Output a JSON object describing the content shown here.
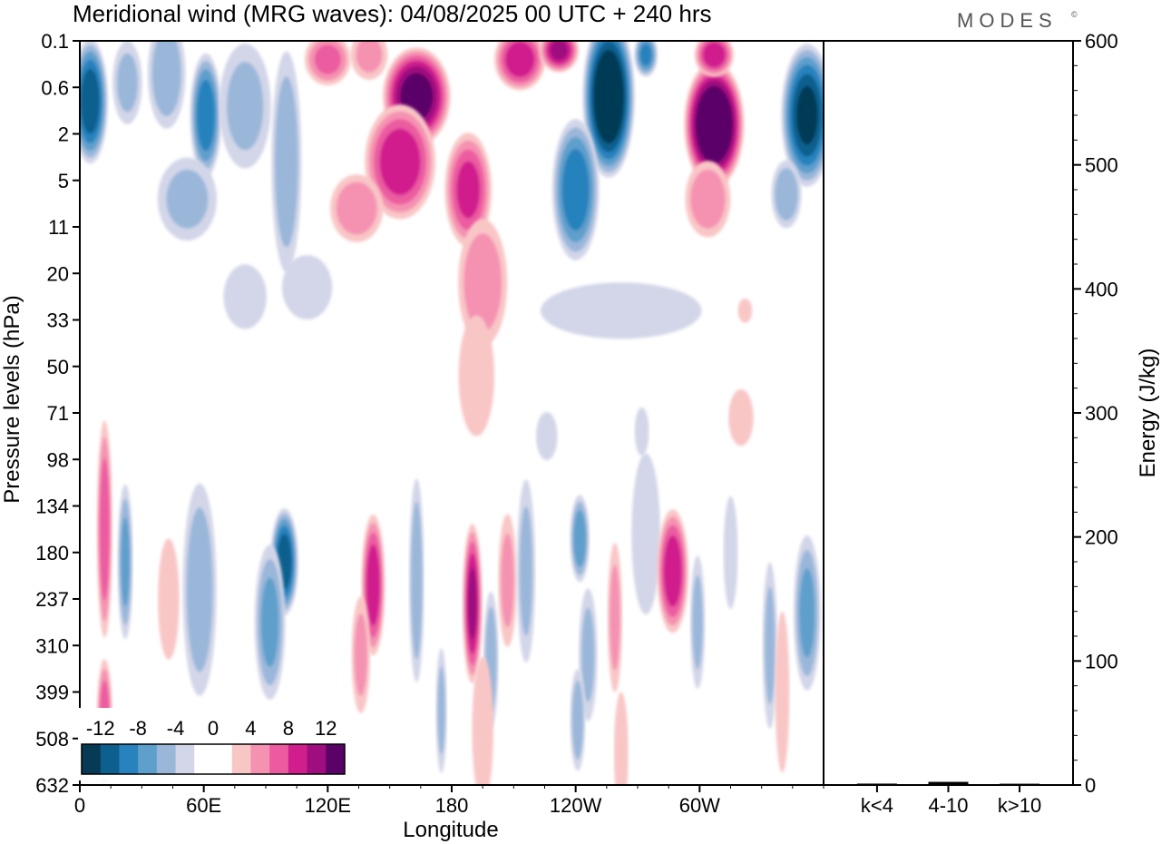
{
  "chart_data": {
    "type": "heatmap",
    "title": "Meridional wind (MRG waves):  04/08/2025  00 UTC  + 240 hrs",
    "brand": "MODES",
    "brand_mark": "©",
    "xlabel": "Longitude",
    "ylabel": "Pressure levels (hPa)",
    "y2label": "Energy (J/kg)",
    "x_ticks": [
      "0",
      "60E",
      "120E",
      "180",
      "120W",
      "60W"
    ],
    "x_tick_degrees": [
      0,
      60,
      120,
      180,
      240,
      300
    ],
    "x_range_degrees": [
      0,
      360
    ],
    "pressure_levels": [
      "0.1",
      "0.6",
      "2",
      "5",
      "11",
      "20",
      "33",
      "50",
      "71",
      "98",
      "134",
      "180",
      "237",
      "310",
      "399",
      "508",
      "632"
    ],
    "colorbar": {
      "tick_labels": [
        "-12",
        "-8",
        "-4",
        "0",
        "4",
        "8",
        "12"
      ],
      "levels": [
        -14,
        -12,
        -10,
        -8,
        -6,
        -4,
        -2,
        0,
        2,
        4,
        6,
        8,
        10,
        12,
        14
      ],
      "colors": [
        "#063a55",
        "#0d5f8e",
        "#2782bd",
        "#5f9fcc",
        "#9ab7da",
        "#d3d6e8",
        "#ffffff",
        "#ffffff",
        "#f9c6c6",
        "#f592b2",
        "#ec5ba0",
        "#d01f8d",
        "#9e0e7f",
        "#5a0268"
      ]
    },
    "energy_panel": {
      "y_ticks": [
        "0",
        "100",
        "200",
        "300",
        "400",
        "500",
        "600"
      ],
      "y_range": [
        0,
        600
      ],
      "categories": [
        "k<4",
        "4-10",
        "k>10"
      ],
      "values": [
        0.4,
        1.8,
        0.3
      ]
    },
    "wind_blobs": [
      {
        "lon": 5,
        "lev": 1.3,
        "wlon": 9,
        "wlev": 1.4,
        "v": -11
      },
      {
        "lon": 23,
        "lev": 0.9,
        "wlon": 8,
        "wlev": 1.0,
        "v": -4
      },
      {
        "lon": 42,
        "lev": 0.7,
        "wlon": 10,
        "wlev": 1.3,
        "v": -5
      },
      {
        "lon": 61,
        "lev": 1.6,
        "wlon": 8,
        "wlev": 1.4,
        "v": -9
      },
      {
        "lon": 80,
        "lev": 1.4,
        "wlon": 14,
        "wlev": 1.5,
        "v": -4
      },
      {
        "lon": 52,
        "lev": 3.4,
        "wlon": 16,
        "wlev": 1.0,
        "v": -4
      },
      {
        "lon": 100,
        "lev": 2.6,
        "wlon": 8,
        "wlev": 2.6,
        "v": -5
      },
      {
        "lon": 110,
        "lev": 5.3,
        "wlon": 14,
        "wlev": 0.8,
        "v": -3
      },
      {
        "lon": 120,
        "lev": 0.4,
        "wlon": 12,
        "wlev": 0.6,
        "v": 6
      },
      {
        "lon": 140,
        "lev": 0.3,
        "wlon": 10,
        "wlev": 0.6,
        "v": 4
      },
      {
        "lon": 163,
        "lev": 1.2,
        "wlon": 17,
        "wlev": 1.1,
        "v": 13
      },
      {
        "lon": 155,
        "lev": 2.6,
        "wlon": 18,
        "wlev": 1.3,
        "v": 9
      },
      {
        "lon": 134,
        "lev": 3.6,
        "wlon": 14,
        "wlev": 0.8,
        "v": 5
      },
      {
        "lon": 188,
        "lev": 3.2,
        "wlon": 12,
        "wlev": 1.3,
        "v": 8
      },
      {
        "lon": 195,
        "lev": 5.2,
        "wlon": 13,
        "wlev": 1.5,
        "v": 5
      },
      {
        "lon": 192,
        "lev": 7.2,
        "wlon": 10,
        "wlev": 1.5,
        "v": 3
      },
      {
        "lon": 213,
        "lev": 0.4,
        "wlon": 13,
        "wlev": 0.7,
        "v": 9
      },
      {
        "lon": 232,
        "lev": 0.2,
        "wlon": 10,
        "wlev": 0.5,
        "v": 10
      },
      {
        "lon": 256,
        "lev": 1.2,
        "wlon": 13,
        "wlev": 1.8,
        "v": -15
      },
      {
        "lon": 240,
        "lev": 3.2,
        "wlon": 12,
        "wlev": 1.6,
        "v": -9
      },
      {
        "lon": 274,
        "lev": 0.3,
        "wlon": 6,
        "wlev": 0.5,
        "v": -8
      },
      {
        "lon": 307,
        "lev": 1.8,
        "wlon": 15,
        "wlev": 1.4,
        "v": 16
      },
      {
        "lon": 307,
        "lev": 0.3,
        "wlon": 10,
        "wlev": 0.5,
        "v": 9
      },
      {
        "lon": 304,
        "lev": 3.4,
        "wlon": 12,
        "wlev": 0.9,
        "v": 5
      },
      {
        "lon": 352,
        "lev": 1.6,
        "wlon": 13,
        "wlev": 1.6,
        "v": -12
      },
      {
        "lon": 342,
        "lev": 3.3,
        "wlon": 8,
        "wlev": 0.8,
        "v": -5
      },
      {
        "lon": 262,
        "lev": 5.8,
        "wlon": 45,
        "wlev": 0.7,
        "v": -3
      },
      {
        "lon": 80,
        "lev": 5.5,
        "wlon": 12,
        "wlev": 0.8,
        "v": -3
      },
      {
        "lon": 322,
        "lev": 5.8,
        "wlon": 4,
        "wlev": 0.3,
        "v": 3
      },
      {
        "lon": 12,
        "lev": 10.5,
        "wlon": 4,
        "wlev": 2.5,
        "v": 7
      },
      {
        "lon": 22,
        "lev": 11.2,
        "wlon": 4,
        "wlev": 1.8,
        "v": -6
      },
      {
        "lon": 58,
        "lev": 11.8,
        "wlon": 9,
        "wlev": 2.5,
        "v": -5
      },
      {
        "lon": 99,
        "lev": 11.2,
        "wlon": 7,
        "wlev": 1.2,
        "v": -11
      },
      {
        "lon": 92,
        "lev": 12.5,
        "wlon": 8,
        "wlev": 1.8,
        "v": -6
      },
      {
        "lon": 43,
        "lev": 12.0,
        "wlon": 6,
        "wlev": 1.5,
        "v": 3
      },
      {
        "lon": 142,
        "lev": 11.7,
        "wlon": 6,
        "wlev": 1.6,
        "v": 9
      },
      {
        "lon": 136,
        "lev": 13.2,
        "wlon": 5,
        "wlev": 1.4,
        "v": 4
      },
      {
        "lon": 163,
        "lev": 11.6,
        "wlon": 4,
        "wlev": 2.4,
        "v": -5
      },
      {
        "lon": 175,
        "lev": 14.4,
        "wlon": 3,
        "wlev": 1.5,
        "v": -4
      },
      {
        "lon": 190,
        "lev": 12.1,
        "wlon": 5,
        "wlev": 1.8,
        "v": 10
      },
      {
        "lon": 199,
        "lev": 13.3,
        "wlon": 4,
        "wlev": 1.6,
        "v": -5
      },
      {
        "lon": 207,
        "lev": 11.6,
        "wlon": 5,
        "wlev": 1.6,
        "v": 4
      },
      {
        "lon": 216,
        "lev": 11.4,
        "wlon": 5,
        "wlev": 2.2,
        "v": -4
      },
      {
        "lon": 242,
        "lev": 10.7,
        "wlon": 5,
        "wlev": 1.0,
        "v": -7
      },
      {
        "lon": 259,
        "lev": 12.4,
        "wlon": 4,
        "wlev": 1.8,
        "v": 4
      },
      {
        "lon": 246,
        "lev": 13.2,
        "wlon": 5,
        "wlev": 1.6,
        "v": -4
      },
      {
        "lon": 274,
        "lev": 10.6,
        "wlon": 8,
        "wlev": 2.0,
        "v": -3
      },
      {
        "lon": 287,
        "lev": 11.4,
        "wlon": 8,
        "wlev": 1.4,
        "v": 9
      },
      {
        "lon": 299,
        "lev": 12.5,
        "wlon": 4,
        "wlev": 1.6,
        "v": -4
      },
      {
        "lon": 315,
        "lev": 11.0,
        "wlon": 4,
        "wlev": 1.4,
        "v": -3
      },
      {
        "lon": 334,
        "lev": 13.0,
        "wlon": 4,
        "wlev": 2.0,
        "v": -4
      },
      {
        "lon": 352,
        "lev": 12.3,
        "wlon": 7,
        "wlev": 1.8,
        "v": -6
      },
      {
        "lon": 12,
        "lev": 14.6,
        "wlon": 4,
        "wlev": 1.4,
        "v": 7
      },
      {
        "lon": 195,
        "lev": 14.8,
        "wlon": 6,
        "wlev": 1.8,
        "v": 3
      },
      {
        "lon": 241,
        "lev": 14.6,
        "wlon": 4,
        "wlev": 1.2,
        "v": -5
      },
      {
        "lon": 262,
        "lev": 15.3,
        "wlon": 4,
        "wlev": 1.5,
        "v": 3
      },
      {
        "lon": 340,
        "lev": 14.0,
        "wlon": 4,
        "wlev": 2.0,
        "v": 3
      },
      {
        "lon": 226,
        "lev": 8.5,
        "wlon": 6,
        "wlev": 0.6,
        "v": -3
      },
      {
        "lon": 272,
        "lev": 8.4,
        "wlon": 4,
        "wlev": 0.6,
        "v": -3
      },
      {
        "lon": 320,
        "lev": 8.1,
        "wlon": 7,
        "wlev": 0.7,
        "v": 3
      }
    ]
  }
}
